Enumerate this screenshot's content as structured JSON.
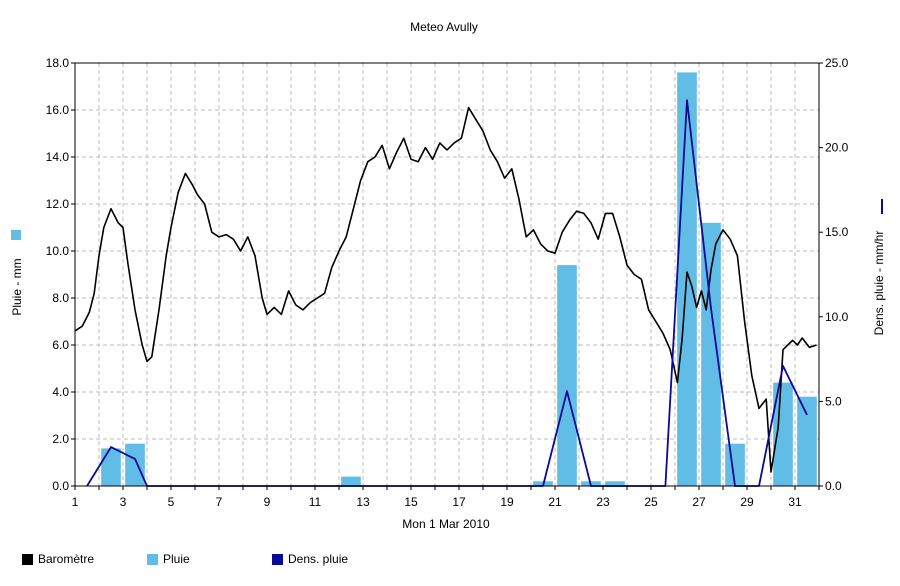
{
  "chart_data": {
    "type": "bar+line",
    "title": "Meteo  Avully",
    "xlabel": "Mon 1 Mar 2010",
    "ylabel_left": "Pluie - mm",
    "ylabel_right": "Dens. pluie - mm/hr",
    "x_range": [
      1,
      32
    ],
    "x_ticks": [
      "1",
      "3",
      "5",
      "7",
      "9",
      "11",
      "13",
      "15",
      "17",
      "19",
      "21",
      "23",
      "25",
      "27",
      "29",
      "31"
    ],
    "y_left_range": [
      0,
      18
    ],
    "y_left_ticks": [
      "0.0",
      "2.0",
      "4.0",
      "6.0",
      "8.0",
      "10.0",
      "12.0",
      "14.0",
      "16.0",
      "18.0"
    ],
    "y_right_range": [
      0,
      25
    ],
    "y_right_ticks": [
      "0.0",
      "5.0",
      "10.0",
      "15.0",
      "20.0",
      "25.0"
    ],
    "grid": true,
    "legend_position": "bottom-left",
    "colors": {
      "barometre": "#000000",
      "pluie": "#62bde6",
      "dens": "#0a0a96"
    },
    "series": [
      {
        "name": "Baromètre",
        "type": "line",
        "axis": "left",
        "x": [
          1.0,
          1.3,
          1.6,
          1.8,
          2.0,
          2.2,
          2.5,
          2.8,
          3.0,
          3.2,
          3.5,
          3.8,
          4.0,
          4.2,
          4.5,
          4.8,
          5.0,
          5.3,
          5.6,
          5.9,
          6.1,
          6.4,
          6.7,
          7.0,
          7.3,
          7.6,
          7.9,
          8.2,
          8.5,
          8.8,
          9.0,
          9.3,
          9.6,
          9.9,
          10.2,
          10.5,
          10.8,
          11.1,
          11.4,
          11.7,
          12.0,
          12.3,
          12.6,
          12.9,
          13.2,
          13.5,
          13.8,
          14.1,
          14.4,
          14.7,
          15.0,
          15.3,
          15.6,
          15.9,
          16.2,
          16.5,
          16.8,
          17.1,
          17.4,
          17.7,
          18.0,
          18.3,
          18.6,
          18.9,
          19.2,
          19.5,
          19.8,
          20.1,
          20.4,
          20.7,
          21.0,
          21.3,
          21.6,
          21.9,
          22.2,
          22.5,
          22.8,
          23.1,
          23.4,
          23.7,
          24.0,
          24.3,
          24.6,
          24.9,
          25.2,
          25.5,
          25.8,
          26.1,
          26.3,
          26.5,
          26.7,
          26.9,
          27.1,
          27.3,
          27.5,
          27.7,
          28.0,
          28.3,
          28.6,
          28.9,
          29.2,
          29.5,
          29.8,
          30.0,
          30.3,
          30.5,
          30.7,
          30.9,
          31.1,
          31.3,
          31.6,
          31.9
        ],
        "values": [
          6.6,
          6.8,
          7.4,
          8.2,
          9.8,
          11.0,
          11.8,
          11.2,
          11.0,
          9.5,
          7.5,
          6.0,
          5.3,
          5.5,
          7.5,
          9.8,
          11.0,
          12.5,
          13.3,
          12.8,
          12.4,
          12.0,
          10.8,
          10.6,
          10.7,
          10.5,
          10.0,
          10.6,
          9.8,
          8.0,
          7.3,
          7.6,
          7.3,
          8.3,
          7.7,
          7.5,
          7.8,
          8.0,
          8.2,
          9.3,
          10.0,
          10.6,
          11.8,
          13.0,
          13.8,
          14.0,
          14.5,
          13.5,
          14.2,
          14.8,
          13.9,
          13.8,
          14.4,
          13.9,
          14.6,
          14.3,
          14.6,
          14.8,
          16.1,
          15.6,
          15.1,
          14.3,
          13.8,
          13.1,
          13.5,
          12.2,
          10.6,
          10.9,
          10.3,
          10.0,
          9.9,
          10.8,
          11.3,
          11.7,
          11.6,
          11.2,
          10.5,
          11.6,
          11.6,
          10.6,
          9.4,
          9.0,
          8.8,
          7.5,
          7.0,
          6.5,
          5.8,
          4.4,
          6.3,
          9.1,
          8.5,
          7.6,
          8.3,
          7.5,
          9.2,
          10.3,
          10.9,
          10.5,
          9.8,
          7.0,
          4.7,
          3.3,
          3.7,
          0.6,
          2.5,
          5.8,
          6.0,
          6.2,
          6.0,
          6.3,
          5.9,
          6.0
        ]
      },
      {
        "name": "Pluie",
        "type": "bar",
        "axis": "left",
        "x": [
          2.5,
          3.5,
          12.5,
          20.5,
          21.5,
          22.5,
          23.5,
          26.5,
          27.5,
          28.5,
          30.5,
          31.5
        ],
        "values": [
          1.6,
          1.8,
          0.4,
          0.2,
          9.4,
          0.2,
          0.2,
          17.6,
          11.2,
          1.8,
          4.4,
          3.8
        ]
      },
      {
        "name": "Dens. pluie",
        "type": "line",
        "axis": "right",
        "x": [
          1.5,
          2.5,
          3.5,
          4.0,
          20.5,
          21.5,
          22.5,
          25.6,
          26.5,
          27.5,
          28.5,
          29.5,
          30.5,
          31.5
        ],
        "values": [
          0,
          2.3,
          1.6,
          0,
          0,
          5.6,
          0,
          0,
          22.8,
          10.5,
          0,
          0,
          7.1,
          4.2
        ]
      }
    ]
  }
}
